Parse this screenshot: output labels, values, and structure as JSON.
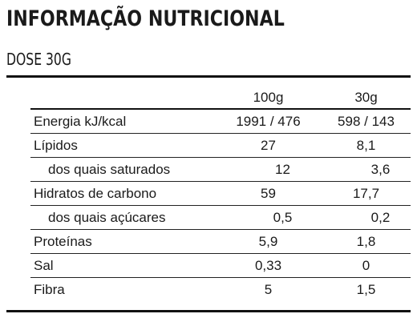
{
  "title": "INFORMAÇÃO NUTRICIONAL",
  "subtitle": "DOSE 30G",
  "columns": [
    "100g",
    "30g"
  ],
  "rows": [
    {
      "label": "Energia kJ/kcal",
      "v1": "1991 / 476",
      "v2": "598 / 143"
    },
    {
      "label": "Lípidos",
      "v1": "27",
      "v2": "8,1"
    },
    {
      "label": "dos quais saturados",
      "v1": "12",
      "v2": "3,6"
    },
    {
      "label": "Hidratos de carbono",
      "v1": "59",
      "v2": "17,7"
    },
    {
      "label": "dos quais açúcares",
      "v1": "0,5",
      "v2": "0,2"
    },
    {
      "label": "Proteínas",
      "v1": "5,9",
      "v2": "1,8"
    },
    {
      "label": "Sal",
      "v1": "0,33",
      "v2": "0"
    },
    {
      "label": "Fibra",
      "v1": "5",
      "v2": "1,5"
    }
  ]
}
